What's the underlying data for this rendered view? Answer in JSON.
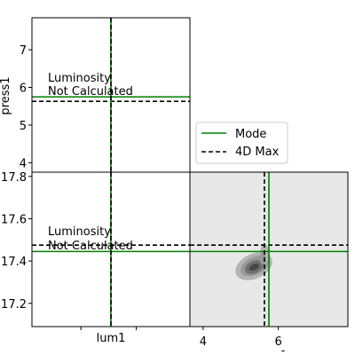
{
  "colors": {
    "mode": "#008000",
    "max4d": "#000000",
    "density_bg": "#e8e8e8",
    "contour_outer": "#b4b4b4",
    "contour_mid": "#989898",
    "contour_inner": "#707070",
    "contour_core": "#484848"
  },
  "chart_data": [
    {
      "type": "line",
      "panel": "top-left",
      "xlabel": "",
      "ylabel": "press1",
      "ylim": [
        3.75,
        7.85
      ],
      "yticks": [
        4,
        5,
        6,
        7
      ],
      "ytick_labels": [
        "4",
        "5",
        "6",
        "7"
      ],
      "x_marker": 0.5,
      "annotations": [
        "Luminosity",
        "Not Calculated"
      ],
      "series": [
        {
          "name": "Mode",
          "style": "solid",
          "y": 5.75
        },
        {
          "name": "4D Max",
          "style": "dashed",
          "y": 5.63
        }
      ]
    },
    {
      "type": "line",
      "panel": "bottom-left",
      "xlabel": "lum1",
      "ylabel": "",
      "ylim": [
        17.09,
        17.82
      ],
      "yticks": [
        17.2,
        17.4,
        17.6,
        17.8
      ],
      "ytick_labels": [
        "17.2",
        "17.4",
        "17.6",
        "17.8"
      ],
      "x_marker": 0.5,
      "annotations": [
        "Luminosity",
        "Not Calculated"
      ],
      "series": [
        {
          "name": "Mode",
          "style": "solid",
          "y": 17.445
        },
        {
          "name": "4D Max",
          "style": "dashed",
          "y": 17.475
        }
      ]
    },
    {
      "type": "heatmap",
      "panel": "bottom-right",
      "xlabel": "-",
      "xlim": [
        3.65,
        7.85
      ],
      "ylim": [
        17.09,
        17.82
      ],
      "xticks": [
        4,
        6
      ],
      "xtick_labels": [
        "4",
        "6"
      ],
      "grid": false,
      "vlines": [
        {
          "name": "Mode",
          "style": "solid",
          "x": 5.75
        },
        {
          "name": "4D Max",
          "style": "dashed",
          "x": 5.63
        }
      ],
      "hlines": [
        {
          "name": "Mode",
          "style": "solid",
          "y": 17.445
        },
        {
          "name": "4D Max",
          "style": "dashed",
          "y": 17.475
        }
      ],
      "density_peak": {
        "x": 5.35,
        "y": 17.375
      }
    }
  ],
  "legend": {
    "placement": "center",
    "entries": [
      {
        "label": "Mode",
        "style": "solid"
      },
      {
        "label": "4D Max",
        "style": "dashed"
      }
    ]
  }
}
